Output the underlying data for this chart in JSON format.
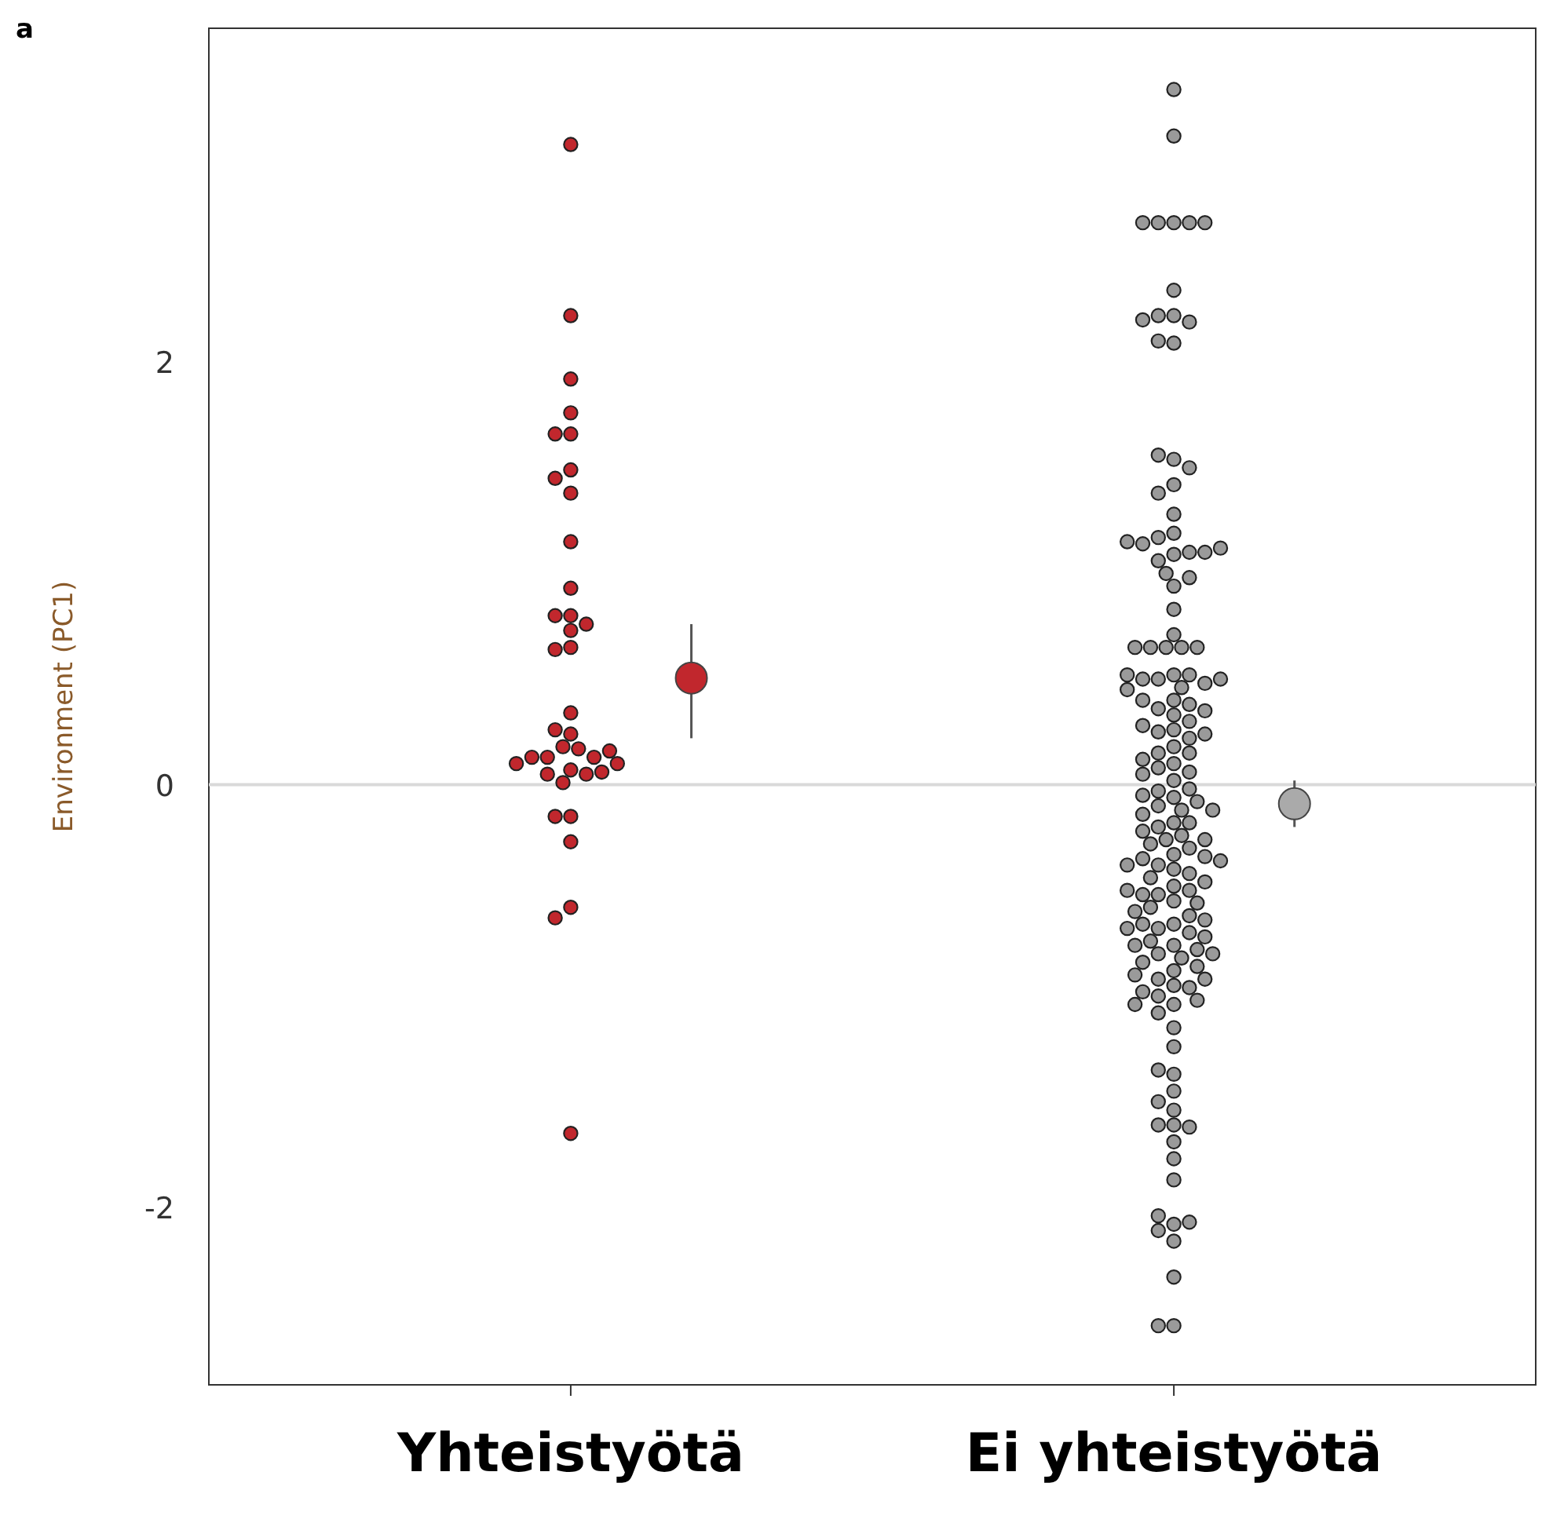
{
  "chart_data": {
    "type": "scatter",
    "title": "a",
    "ylabel": "Environment (PC1)",
    "marker": "circle",
    "categories": [
      "Yhteistyötä",
      "Ei yhteistyötä"
    ],
    "ylim": [
      -2.84,
      3.58
    ],
    "yticks": [
      -2,
      0,
      2
    ],
    "grid": false,
    "ref_lines": [
      {
        "axis": "y",
        "value": 0,
        "color": "#d9d9d9"
      }
    ],
    "series": [
      {
        "color": "#c1272d",
        "x": [
          "Yhteistyötä",
          "Yhteistyötä",
          "Yhteistyötä",
          "Yhteistyötä",
          "Yhteistyötä",
          "Yhteistyötä",
          "Yhteistyötä",
          "Yhteistyötä",
          "Yhteistyötä",
          "Yhteistyötä",
          "Yhteistyötä",
          "Yhteistyötä",
          "Yhteistyötä",
          "Yhteistyötä",
          "Yhteistyötä",
          "Yhteistyötä",
          "Yhteistyötä",
          "Yhteistyötä",
          "Yhteistyötä",
          "Yhteistyötä",
          "Yhteistyötä",
          "Yhteistyötä",
          "Yhteistyötä",
          "Yhteistyötä",
          "Yhteistyötä",
          "Yhteistyötä",
          "Yhteistyötä",
          "Yhteistyötä",
          "Yhteistyötä",
          "Yhteistyötä",
          "Yhteistyötä",
          "Yhteistyötä",
          "Yhteistyötä",
          "Yhteistyötä",
          "Yhteistyötä",
          "Yhteistyötä",
          "Yhteistyötä",
          "Yhteistyötä",
          "Yhteistyötä"
        ],
        "values": [
          3.03,
          2.22,
          1.92,
          1.76,
          1.66,
          1.66,
          1.49,
          1.45,
          1.38,
          1.15,
          0.93,
          0.8,
          0.73,
          0.8,
          0.76,
          0.65,
          0.64,
          0.34,
          0.24,
          0.26,
          0.18,
          0.17,
          0.13,
          0.07,
          0.01,
          0.05,
          0.13,
          0.05,
          0.13,
          0.16,
          0.1,
          0.1,
          0.06,
          -0.15,
          -0.15,
          -0.27,
          -0.58,
          -0.63,
          -1.65
        ]
      },
      {
        "color": "#9a9a9a",
        "x": [
          "Ei yhteistyötä",
          "Ei yhteistyötä",
          "Ei yhteistyötä",
          "Ei yhteistyötä",
          "Ei yhteistyötä",
          "Ei yhteistyötä",
          "Ei yhteistyötä",
          "Ei yhteistyötä",
          "Ei yhteistyötä",
          "Ei yhteistyötä",
          "Ei yhteistyötä",
          "Ei yhteistyötä",
          "Ei yhteistyötä",
          "Ei yhteistyötä",
          "Ei yhteistyötä",
          "Ei yhteistyötä",
          "Ei yhteistyötä",
          "Ei yhteistyötä",
          "Ei yhteistyötä",
          "Ei yhteistyötä",
          "Ei yhteistyötä",
          "Ei yhteistyötä",
          "Ei yhteistyötä",
          "Ei yhteistyötä",
          "Ei yhteistyötä",
          "Ei yhteistyötä",
          "Ei yhteistyötä",
          "Ei yhteistyötä",
          "Ei yhteistyötä",
          "Ei yhteistyötä",
          "Ei yhteistyötä",
          "Ei yhteistyötä",
          "Ei yhteistyötä",
          "Ei yhteistyötä",
          "Ei yhteistyötä",
          "Ei yhteistyötä",
          "Ei yhteistyötä",
          "Ei yhteistyötä",
          "Ei yhteistyötä",
          "Ei yhteistyötä",
          "Ei yhteistyötä",
          "Ei yhteistyötä",
          "Ei yhteistyötä",
          "Ei yhteistyötä",
          "Ei yhteistyötä",
          "Ei yhteistyötä",
          "Ei yhteistyötä",
          "Ei yhteistyötä",
          "Ei yhteistyötä",
          "Ei yhteistyötä",
          "Ei yhteistyötä",
          "Ei yhteistyötä",
          "Ei yhteistyötä",
          "Ei yhteistyötä",
          "Ei yhteistyötä",
          "Ei yhteistyötä",
          "Ei yhteistyötä",
          "Ei yhteistyötä",
          "Ei yhteistyötä",
          "Ei yhteistyötä",
          "Ei yhteistyötä",
          "Ei yhteistyötä",
          "Ei yhteistyötä",
          "Ei yhteistyötä",
          "Ei yhteistyötä",
          "Ei yhteistyötä",
          "Ei yhteistyötä",
          "Ei yhteistyötä",
          "Ei yhteistyötä",
          "Ei yhteistyötä",
          "Ei yhteistyötä",
          "Ei yhteistyötä",
          "Ei yhteistyötä",
          "Ei yhteistyötä",
          "Ei yhteistyötä",
          "Ei yhteistyötä",
          "Ei yhteistyötä",
          "Ei yhteistyötä",
          "Ei yhteistyötä",
          "Ei yhteistyötä",
          "Ei yhteistyötä",
          "Ei yhteistyötä",
          "Ei yhteistyötä",
          "Ei yhteistyötä",
          "Ei yhteistyötä",
          "Ei yhteistyötä",
          "Ei yhteistyötä",
          "Ei yhteistyötä",
          "Ei yhteistyötä",
          "Ei yhteistyötä",
          "Ei yhteistyötä",
          "Ei yhteistyötä",
          "Ei yhteistyötä",
          "Ei yhteistyötä",
          "Ei yhteistyötä",
          "Ei yhteistyötä",
          "Ei yhteistyötä",
          "Ei yhteistyötä",
          "Ei yhteistyötä",
          "Ei yhteistyötä",
          "Ei yhteistyötä",
          "Ei yhteistyötä",
          "Ei yhteistyötä",
          "Ei yhteistyötä",
          "Ei yhteistyötä",
          "Ei yhteistyötä",
          "Ei yhteistyötä",
          "Ei yhteistyötä",
          "Ei yhteistyötä",
          "Ei yhteistyötä",
          "Ei yhteistyötä",
          "Ei yhteistyötä",
          "Ei yhteistyötä",
          "Ei yhteistyötä",
          "Ei yhteistyötä",
          "Ei yhteistyötä",
          "Ei yhteistyötä",
          "Ei yhteistyötä",
          "Ei yhteistyötä",
          "Ei yhteistyötä",
          "Ei yhteistyötä",
          "Ei yhteistyötä",
          "Ei yhteistyötä",
          "Ei yhteistyötä",
          "Ei yhteistyötä",
          "Ei yhteistyötä",
          "Ei yhteistyötä",
          "Ei yhteistyötä",
          "Ei yhteistyötä",
          "Ei yhteistyötä",
          "Ei yhteistyötä",
          "Ei yhteistyötä",
          "Ei yhteistyötä",
          "Ei yhteistyötä",
          "Ei yhteistyötä",
          "Ei yhteistyötä",
          "Ei yhteistyötä",
          "Ei yhteistyötä",
          "Ei yhteistyötä",
          "Ei yhteistyötä",
          "Ei yhteistyötä",
          "Ei yhteistyötä",
          "Ei yhteistyötä",
          "Ei yhteistyötä",
          "Ei yhteistyötä",
          "Ei yhteistyötä",
          "Ei yhteistyötä",
          "Ei yhteistyötä",
          "Ei yhteistyötä",
          "Ei yhteistyötä",
          "Ei yhteistyötä",
          "Ei yhteistyötä",
          "Ei yhteistyötä",
          "Ei yhteistyötä",
          "Ei yhteistyötä",
          "Ei yhteistyötä"
        ],
        "values": [
          3.29,
          3.07,
          2.66,
          2.66,
          2.66,
          2.66,
          2.66,
          2.34,
          2.22,
          2.22,
          2.19,
          2.2,
          2.09,
          2.1,
          1.54,
          1.56,
          1.5,
          1.42,
          1.38,
          1.28,
          1.19,
          1.17,
          1.09,
          1.06,
          0.94,
          1.0,
          1.1,
          1.14,
          1.1,
          1.15,
          1.12,
          0.98,
          0.83,
          0.71,
          0.65,
          0.65,
          0.65,
          0.65,
          0.65,
          0.52,
          0.5,
          0.46,
          0.52,
          0.5,
          0.48,
          0.52,
          0.5,
          0.45,
          0.4,
          0.36,
          0.38,
          0.33,
          0.4,
          0.35,
          0.3,
          0.26,
          0.25,
          0.28,
          0.22,
          0.18,
          0.24,
          0.15,
          0.15,
          0.12,
          0.1,
          0.08,
          0.06,
          0.05,
          0.02,
          -0.03,
          -0.02,
          -0.06,
          -0.05,
          -0.1,
          -0.12,
          -0.08,
          -0.14,
          -0.18,
          -0.12,
          -0.2,
          -0.24,
          -0.18,
          -0.26,
          -0.22,
          -0.28,
          -0.3,
          -0.26,
          -0.33,
          -0.38,
          -0.35,
          -0.4,
          -0.34,
          -0.42,
          -0.38,
          -0.44,
          -0.36,
          -0.48,
          -0.52,
          -0.46,
          -0.55,
          -0.5,
          -0.56,
          -0.52,
          -0.58,
          -0.5,
          -0.6,
          -0.66,
          -0.62,
          -0.68,
          -0.64,
          -0.7,
          -0.66,
          -0.72,
          -0.68,
          -0.76,
          -0.8,
          -0.74,
          -0.82,
          -0.78,
          -0.84,
          -0.8,
          -0.76,
          -0.88,
          -0.92,
          -0.86,
          -0.95,
          -0.9,
          -0.96,
          -0.92,
          -1.0,
          -1.04,
          -0.98,
          -1.08,
          -1.02,
          -1.04,
          -1.24,
          -1.15,
          -1.37,
          -1.35,
          -1.45,
          -1.5,
          -1.54,
          -1.61,
          -1.69,
          -1.61,
          -1.62,
          -1.77,
          -1.87,
          -2.08,
          -2.11,
          -2.07,
          -2.04,
          -2.16,
          -2.33,
          -2.56,
          -2.56
        ]
      },
      {
        "color": "#c1272d",
        "x": [
          "Yhteistyötä"
        ],
        "values": [
          0.505
        ],
        "errors": [
          [
            0.22,
            0.76
          ]
        ]
      },
      {
        "color": "#aaaaaa",
        "x": [
          "Ei yhteistyötä"
        ],
        "values": [
          -0.09
        ],
        "errors": [
          [
            -0.2,
            0.02
          ]
        ]
      }
    ]
  }
}
